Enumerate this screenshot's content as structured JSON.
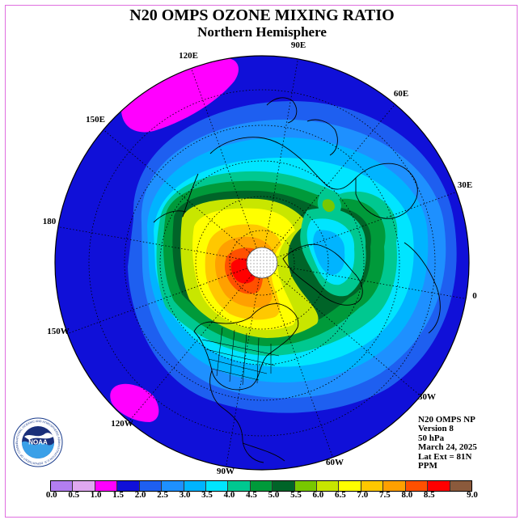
{
  "title": "N20 OMPS OZONE MIXING RATIO",
  "subtitle": "Northern Hemisphere",
  "longitude_labels": {
    "lon_90e": "90E",
    "lon_60e": "60E",
    "lon_30e": "30E",
    "lon_0": "0",
    "lon_30w": "30W",
    "lon_60w": "60W",
    "lon_90w": "90W",
    "lon_120w": "120W",
    "lon_150w": "150W",
    "lon_180": "180",
    "lon_150e": "150E",
    "lon_120e": "120E"
  },
  "info": {
    "product": "N20 OMPS NP",
    "version": "Version 8",
    "level": "50 hPa",
    "date": "March 24, 2025",
    "lat_ext": "Lat Ext = 81N",
    "units": "PPM"
  },
  "logo": {
    "text": "NOAA",
    "ring_text": "NATIONAL OCEANIC AND ATMOSPHERIC ADMINISTRATION U.S. DEPARTMENT OF COMMERCE"
  },
  "legend": {
    "labels": [
      "0.0",
      "0.5",
      "1.0",
      "1.5",
      "2.0",
      "2.5",
      "3.0",
      "3.5",
      "4.0",
      "4.5",
      "5.0",
      "5.5",
      "6.0",
      "6.5",
      "7.0",
      "7.5",
      "8.0",
      "8.5",
      "9.0"
    ],
    "colors": [
      "#b37ef0",
      "#e0a8f0",
      "#ff00ff",
      "#1010d8",
      "#1e5ff0",
      "#1e90ff",
      "#00b4ff",
      "#00e5ff",
      "#00c890",
      "#009a3a",
      "#006428",
      "#78c800",
      "#c8e600",
      "#ffff00",
      "#ffc800",
      "#ffa000",
      "#ff5000",
      "#ff0000",
      "#8b5a3c"
    ]
  }
}
